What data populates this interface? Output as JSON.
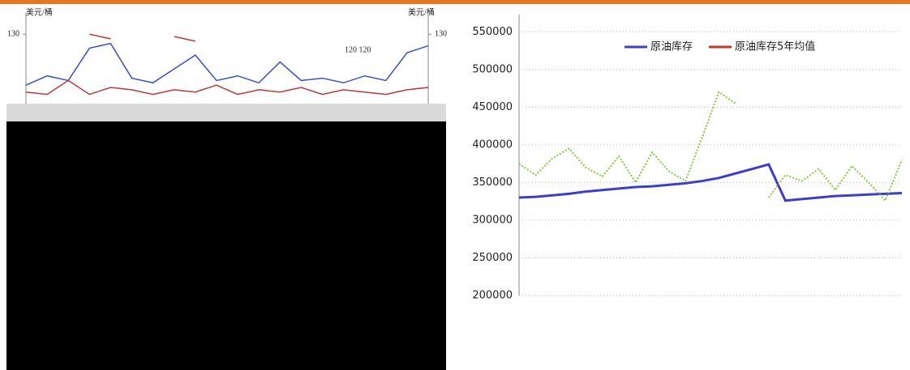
{
  "chart_data": [
    {
      "type": "line",
      "y_label": "美元/桶",
      "y2_label": "美元/桶",
      "categories": [
        null,
        null,
        null,
        null,
        null,
        null,
        null,
        null,
        null,
        null,
        null,
        null,
        null,
        null,
        null,
        null,
        null,
        null,
        null,
        null
      ],
      "ylim": [
        100,
        135
      ],
      "yticks": [
        130
      ],
      "y2lim": [
        100,
        135
      ],
      "y2ticks": [
        130
      ],
      "annotation": "120 120",
      "series": [
        {
          "color": "#3b4fc4",
          "values": [
            108,
            112,
            110,
            124,
            126,
            111,
            109,
            115,
            121,
            110,
            112,
            109,
            118,
            110,
            111,
            109,
            112,
            110,
            122,
            125
          ]
        },
        {
          "color": "#b83a3a",
          "values": [
            105,
            104,
            110,
            104,
            107,
            106,
            104,
            106,
            105,
            108,
            104,
            106,
            105,
            107,
            104,
            106,
            105,
            104,
            106,
            107
          ]
        },
        {
          "color": "#b83a3a",
          "axis": "y2",
          "values": [
            null,
            null,
            null,
            130,
            128,
            null,
            null,
            129,
            127,
            null,
            null,
            null,
            null,
            null,
            null,
            null,
            null,
            null,
            null,
            null
          ]
        }
      ]
    },
    {
      "type": "line",
      "categories": [
        null,
        null,
        null,
        null,
        null,
        null,
        null,
        null,
        null,
        null,
        null,
        null,
        null,
        null,
        null,
        null,
        null,
        null,
        null,
        null,
        null,
        null,
        null,
        null
      ],
      "ylim": [
        200000,
        560000
      ],
      "yticks": [
        200000,
        250000,
        300000,
        350000,
        400000,
        450000,
        500000,
        550000
      ],
      "grid": true,
      "series": [
        {
          "name": "原油库存",
          "color": "#3b3fc8",
          "values": [
            330000,
            331000,
            333000,
            335000,
            338000,
            340000,
            342000,
            344000,
            345000,
            347000,
            349000,
            352000,
            356000,
            362000,
            368000,
            374000,
            326000,
            328000,
            330000,
            332000,
            333000,
            334000,
            335000,
            336000
          ]
        },
        {
          "name": "原油库存5年均值",
          "color": "#c0392b",
          "values": [
            null,
            null,
            null,
            null,
            null,
            null,
            null,
            null,
            null,
            null,
            null,
            null,
            null,
            null,
            null,
            null,
            null,
            null,
            null,
            null,
            null,
            null,
            null,
            null
          ]
        },
        {
          "color": "#8cc63f",
          "values": [
            375000,
            360000,
            382000,
            395000,
            370000,
            358000,
            385000,
            350000,
            390000,
            365000,
            352000,
            410000,
            470000,
            455000,
            null,
            330000,
            360000,
            352000,
            368000,
            340000,
            372000,
            350000,
            326000,
            380000
          ]
        }
      ]
    }
  ]
}
